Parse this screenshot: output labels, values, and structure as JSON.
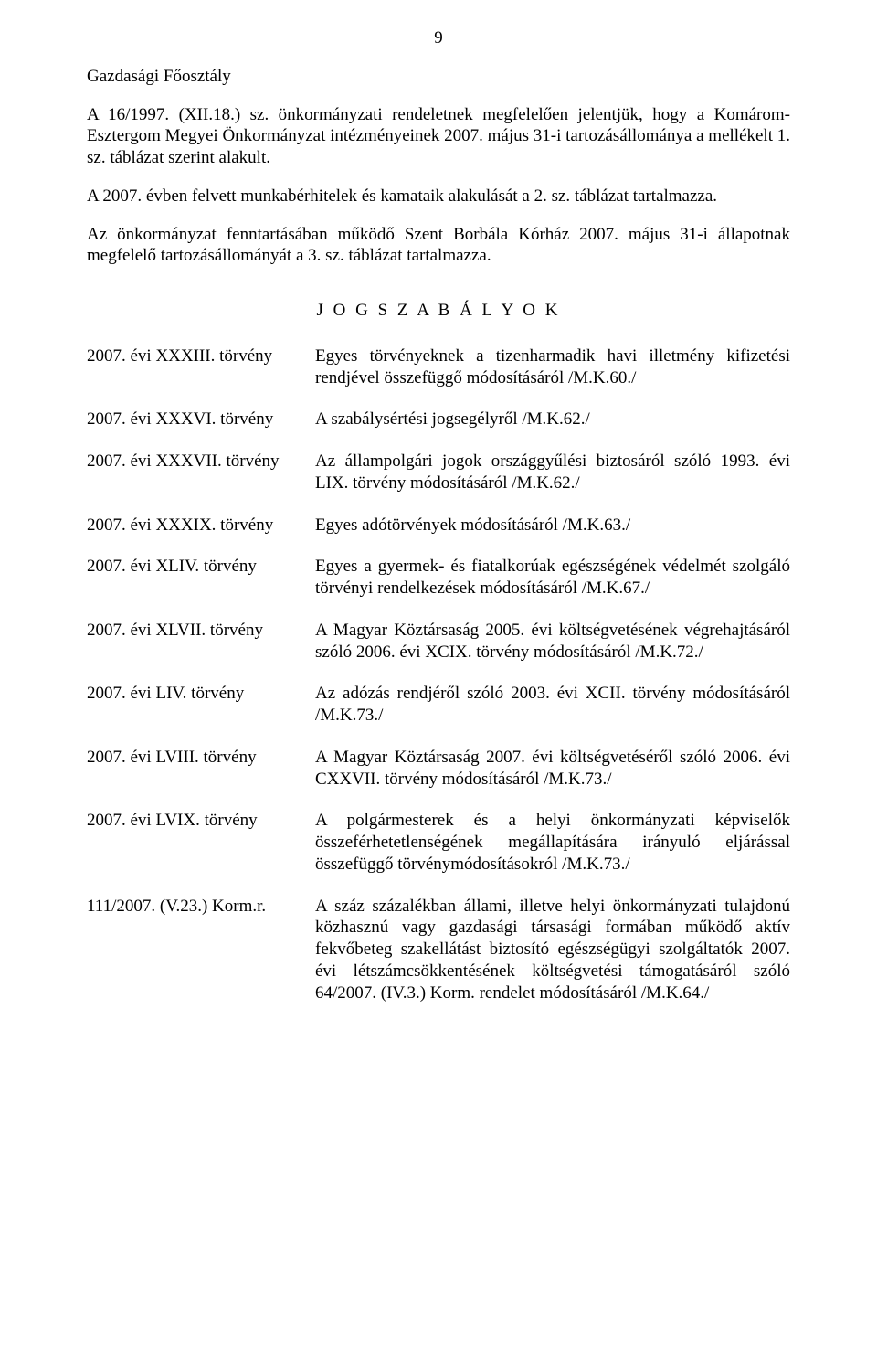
{
  "page_number": "9",
  "intro": {
    "heading": "Gazdasági Főosztály",
    "p1": "A 16/1997. (XII.18.) sz. önkormányzati rendeletnek megfelelően jelentjük, hogy a Komárom-Esztergom Megyei Önkormányzat intézményeinek 2007. május 31-i tartozásállománya a mellékelt 1. sz. táblázat szerint alakult.",
    "p2": "A 2007. évben felvett munkabérhitelek és kamataik alakulását a 2. sz. táblázat tartalmazza.",
    "p3": "Az önkormányzat fenntartásában működő Szent Borbála Kórház 2007. május 31-i állapotnak megfelelő tartozásállományát a 3. sz. táblázat tartalmazza."
  },
  "section_title": "J O G S Z A B Á L Y O K",
  "laws": [
    {
      "ref": "2007. évi XXXIII. törvény",
      "desc": "Egyes törvényeknek a tizenharmadik havi illetmény kifizetési rendjével összefüggő módosításáról /M.K.60./"
    },
    {
      "ref": "2007. évi XXXVI. törvény",
      "desc": "A szabálysértési jogsegélyről /M.K.62./"
    },
    {
      "ref": "2007. évi XXXVII. törvény",
      "desc": "Az állampolgári jogok országgyűlési biztosáról szóló 1993. évi LIX. törvény módosításáról /M.K.62./"
    },
    {
      "ref": "2007. évi XXXIX. törvény",
      "desc": "Egyes adótörvények módosításáról /M.K.63./"
    },
    {
      "ref": "2007. évi XLIV. törvény",
      "desc": "Egyes a gyermek- és fiatalkorúak egészségének védelmét szolgáló törvényi rendelkezések módosításáról /M.K.67./"
    },
    {
      "ref": "2007. évi XLVII. törvény",
      "desc": "A Magyar Köztársaság 2005. évi költségvetésének végrehajtásáról szóló 2006. évi XCIX. törvény módosításáról /M.K.72./"
    },
    {
      "ref": "2007. évi LIV. törvény",
      "desc": "Az adózás rendjéről szóló 2003. évi XCII. törvény módosításáról /M.K.73./"
    },
    {
      "ref": "2007. évi LVIII. törvény",
      "desc": "A Magyar Köztársaság 2007. évi költségvetéséről szóló 2006. évi CXXVII. törvény módosításáról /M.K.73./"
    },
    {
      "ref": "2007. évi LVIX. törvény",
      "desc": "A polgármesterek és a helyi önkormányzati képviselők összeférhetetlenségének megállapítására irányuló eljárással összefüggő törvénymódosításokról /M.K.73./"
    },
    {
      "ref": "111/2007. (V.23.) Korm.r.",
      "desc": "A száz százalékban állami, illetve helyi önkormányzati tulajdonú közhasznú vagy gazdasági társasági formában működő aktív fekvőbeteg szakellátást biztosító egészségügyi szolgáltatók 2007. évi létszámcsökkentésének költségvetési támogatásáról szóló 64/2007. (IV.3.) Korm. rendelet módosításáról /M.K.64./"
    }
  ]
}
